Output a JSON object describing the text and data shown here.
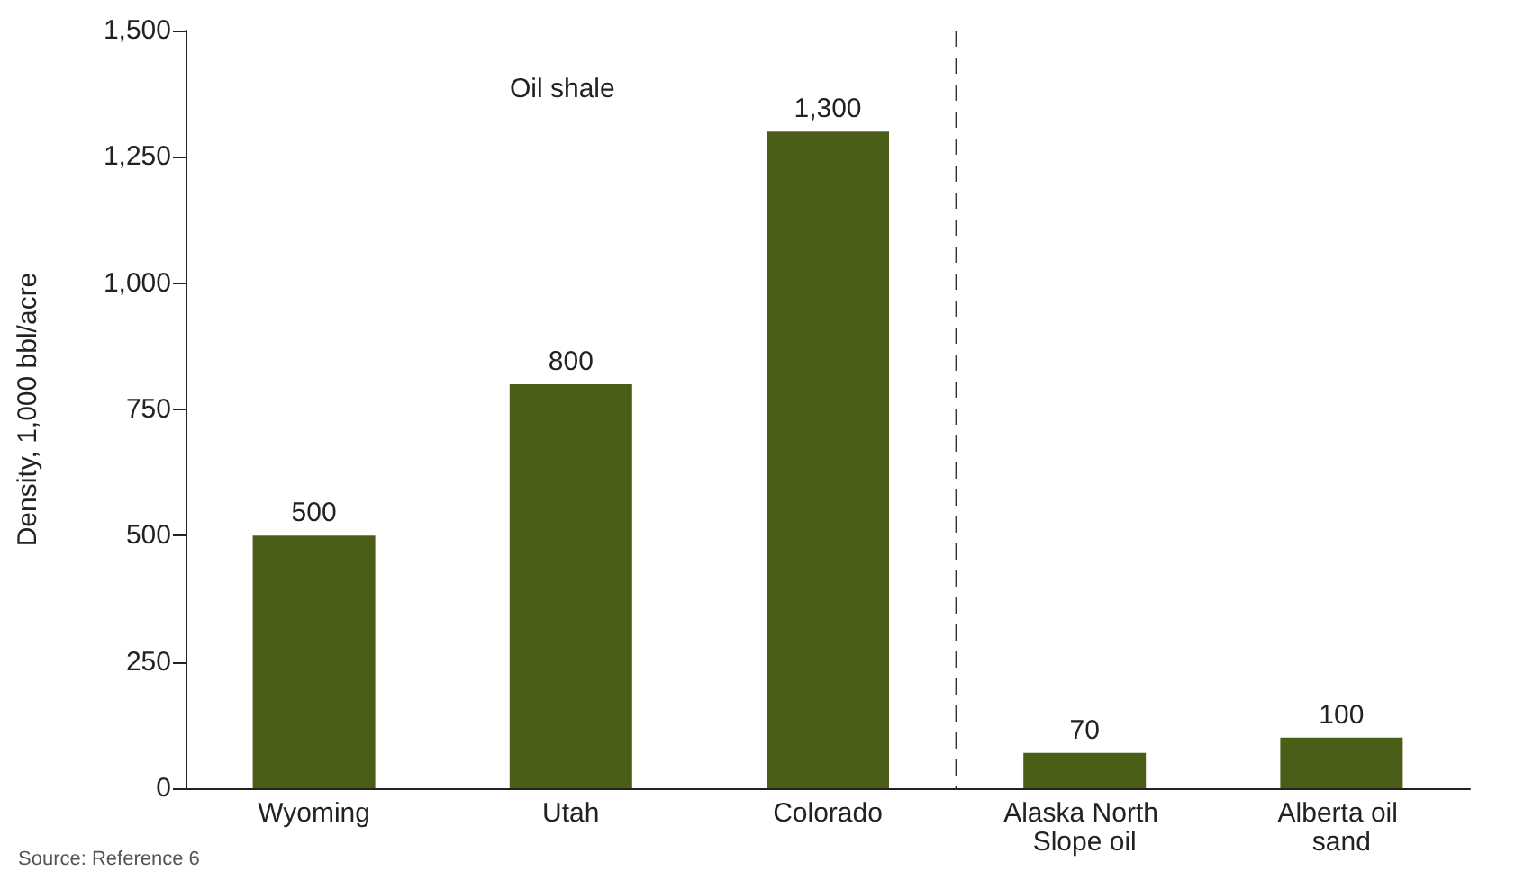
{
  "chart_data": {
    "type": "bar",
    "ylabel": "Density, 1,000 bbl/acre",
    "categories": [
      "Wyoming",
      "Utah",
      "Colorado",
      "Alaska North Slope oil",
      "Alberta oil sand"
    ],
    "values": [
      500,
      800,
      1300,
      70,
      100
    ],
    "color": "#4b5e18",
    "value_labels": [
      "500",
      "800",
      "1,300",
      "70",
      "100"
    ],
    "ylim": [
      0,
      1500
    ],
    "yticks": [
      0,
      250,
      500,
      750,
      {
        "value": 1000,
        "label": "1,000"
      },
      {
        "value": 1250,
        "label": "1,250"
      },
      {
        "value": 1500,
        "label": "1,500"
      }
    ],
    "grid": false,
    "annotations": [
      "Oil shale",
      "Source: Reference 6"
    ]
  }
}
